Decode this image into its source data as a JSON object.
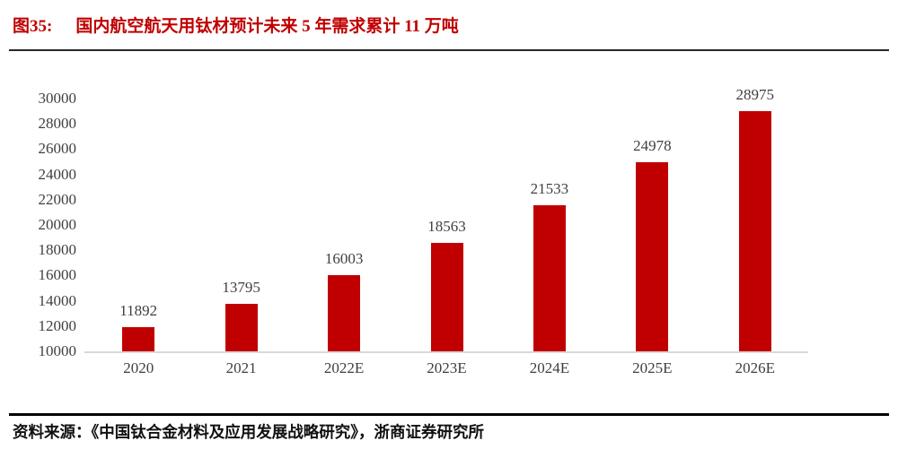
{
  "header": {
    "figure_label": "图35:",
    "title": "国内航空航天用钛材预计未来 5 年需求累计 11 万吨"
  },
  "chart_data": {
    "type": "bar",
    "title": "国内航空航天用钛材预计未来 5 年需求累计 11 万吨",
    "categories": [
      "2020",
      "2021",
      "2022E",
      "2023E",
      "2024E",
      "2025E",
      "2026E"
    ],
    "values": [
      11892,
      13795,
      16003,
      18563,
      21533,
      24978,
      28975
    ],
    "value_labels": [
      "11892",
      "13795",
      "16003",
      "18563",
      "21533",
      "24978",
      "28975"
    ],
    "ylim": [
      10000,
      30000
    ],
    "ytick_step": 2000,
    "yticks": [
      10000,
      12000,
      14000,
      16000,
      18000,
      20000,
      22000,
      24000,
      26000,
      28000,
      30000
    ],
    "xlabel": "",
    "ylabel": "",
    "grid": "off",
    "legend": "none",
    "value_label_position": "above-bars",
    "bar_color": "#C00000",
    "tick_label_color": "#3F3F3F",
    "axis_line_color": "#D9D9D9",
    "title_color": "#C00000"
  },
  "footer": {
    "source": "资料来源：《中国钛合金材料及应用发展战略研究》，浙商证券研究所"
  }
}
